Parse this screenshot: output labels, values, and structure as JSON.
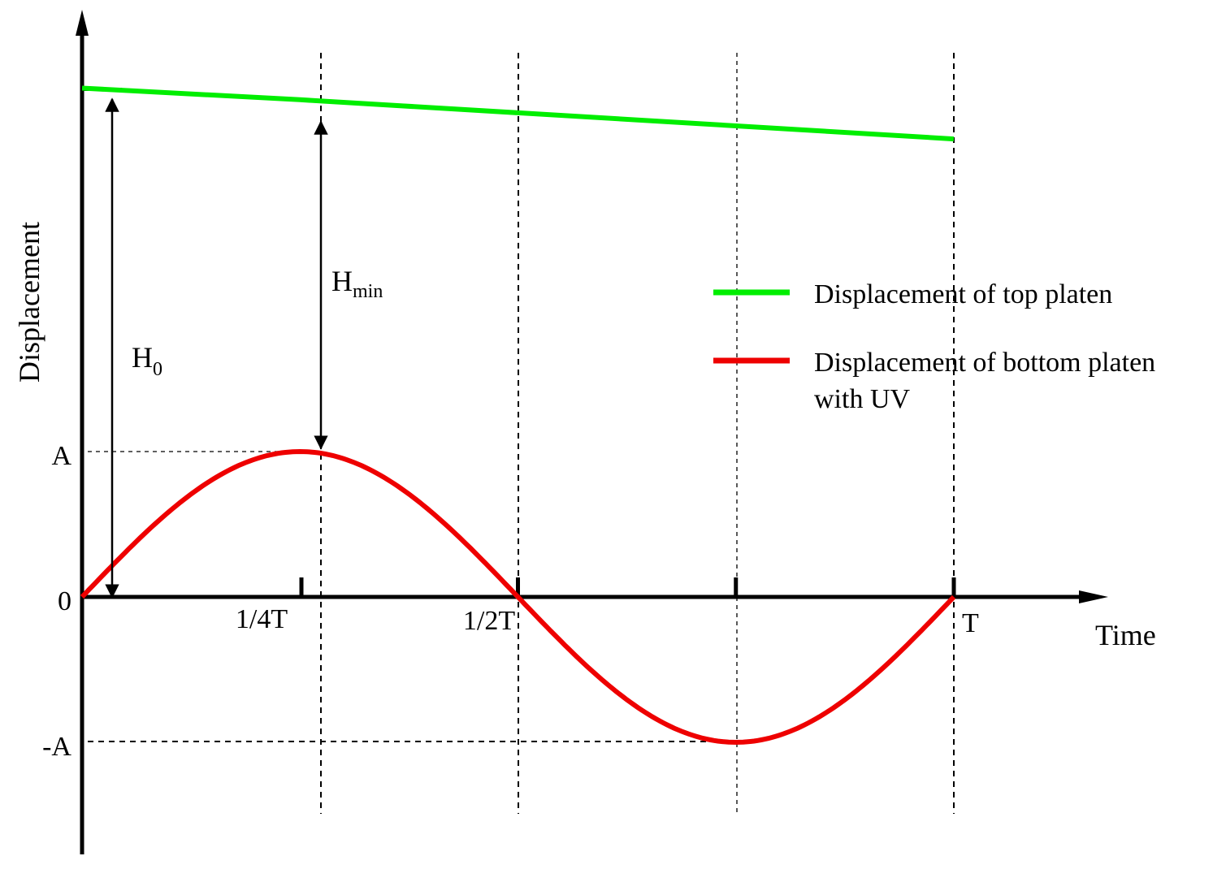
{
  "chart_data": {
    "type": "line",
    "xlabel": "Time",
    "ylabel": "Displacement",
    "x_ticks": [
      {
        "x": 0.25,
        "label": "1/4T"
      },
      {
        "x": 0.5,
        "label": "1/2T"
      },
      {
        "x": 0.75,
        "label": ""
      },
      {
        "x": 1.0,
        "label": "T"
      }
    ],
    "y_ticks": [
      {
        "y": 1,
        "label": "A"
      },
      {
        "y": 0,
        "label": "0"
      },
      {
        "y": -1,
        "label": "-A"
      }
    ],
    "series": [
      {
        "name": "Displacement  of top platen",
        "color": "#00ee00",
        "x": [
          0,
          0.25,
          0.5,
          0.75,
          1.0
        ],
        "y": [
          3.5,
          3.42,
          3.33,
          3.24,
          3.15
        ]
      },
      {
        "name": "Displacement  of bottom platen with UV",
        "color": "#ee0000",
        "function": "A*sin(2*pi*t/T)",
        "x": [
          0,
          0.25,
          0.5,
          0.75,
          1.0
        ],
        "y": [
          0,
          1,
          0,
          -1,
          0
        ]
      }
    ],
    "annotations": [
      {
        "label": "H",
        "sub": "0"
      },
      {
        "label": "H",
        "sub": "min"
      }
    ],
    "legend": {
      "position": "right",
      "items": [
        {
          "lines": [
            "Displacement  of top platen"
          ],
          "color": "#00ee00"
        },
        {
          "lines": [
            "Displacement  of bottom platen",
            "with UV"
          ],
          "color": "#ee0000"
        }
      ]
    }
  }
}
